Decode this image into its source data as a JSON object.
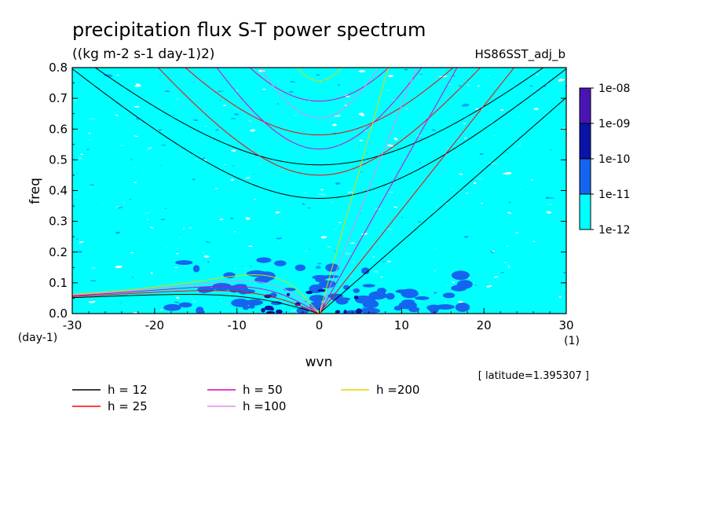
{
  "chart_data": {
    "type": "heatmap",
    "title": "precipitation flux S-T power spectrum",
    "units": "((kg m-2 s-1 day-1)2)",
    "run_label": "HS86SST_adj_b",
    "xlabel": "wvn",
    "xunit": "(1)",
    "ylabel": "freq",
    "yunit": "(day-1)",
    "xlim": [
      -30,
      30
    ],
    "ylim": [
      0,
      0.8
    ],
    "xticks": [
      -30,
      -20,
      -10,
      0,
      10,
      20,
      30
    ],
    "xtick_labels": [
      "-30",
      "-20",
      "-10",
      "0",
      "10",
      "20",
      "30"
    ],
    "yticks": [
      0,
      0.1,
      0.2,
      0.3,
      0.4,
      0.5,
      0.6,
      0.7,
      0.8
    ],
    "ytick_labels": [
      "0.0",
      "0.1",
      "0.2",
      "0.3",
      "0.4",
      "0.5",
      "0.6",
      "0.7",
      "0.8"
    ],
    "latitude_note": "[ latitude=1.395307 ]",
    "colorbar": {
      "labels": [
        "1e-08",
        "1e-09",
        "1e-10",
        "1e-11",
        "1e-12"
      ],
      "colors": [
        "#4a14b4",
        "#0a14a8",
        "#1464f0",
        "#00ffff"
      ]
    },
    "field_colors": {
      "background": "#ffffff",
      "low": "#00ffff",
      "mid": "#1464f0",
      "high": "#0a14a8"
    },
    "dispersion_curves": [
      {
        "label": "h = 12",
        "h": 12,
        "color": "#000000"
      },
      {
        "label": "h = 25",
        "h": 25,
        "color": "#ff0000"
      },
      {
        "label": "h = 50",
        "h": 50,
        "color": "#e000c8"
      },
      {
        "label": "h =100",
        "h": 100,
        "color": "#d890e0"
      },
      {
        "label": "h =200",
        "h": 200,
        "color": "#e0d800"
      }
    ]
  }
}
